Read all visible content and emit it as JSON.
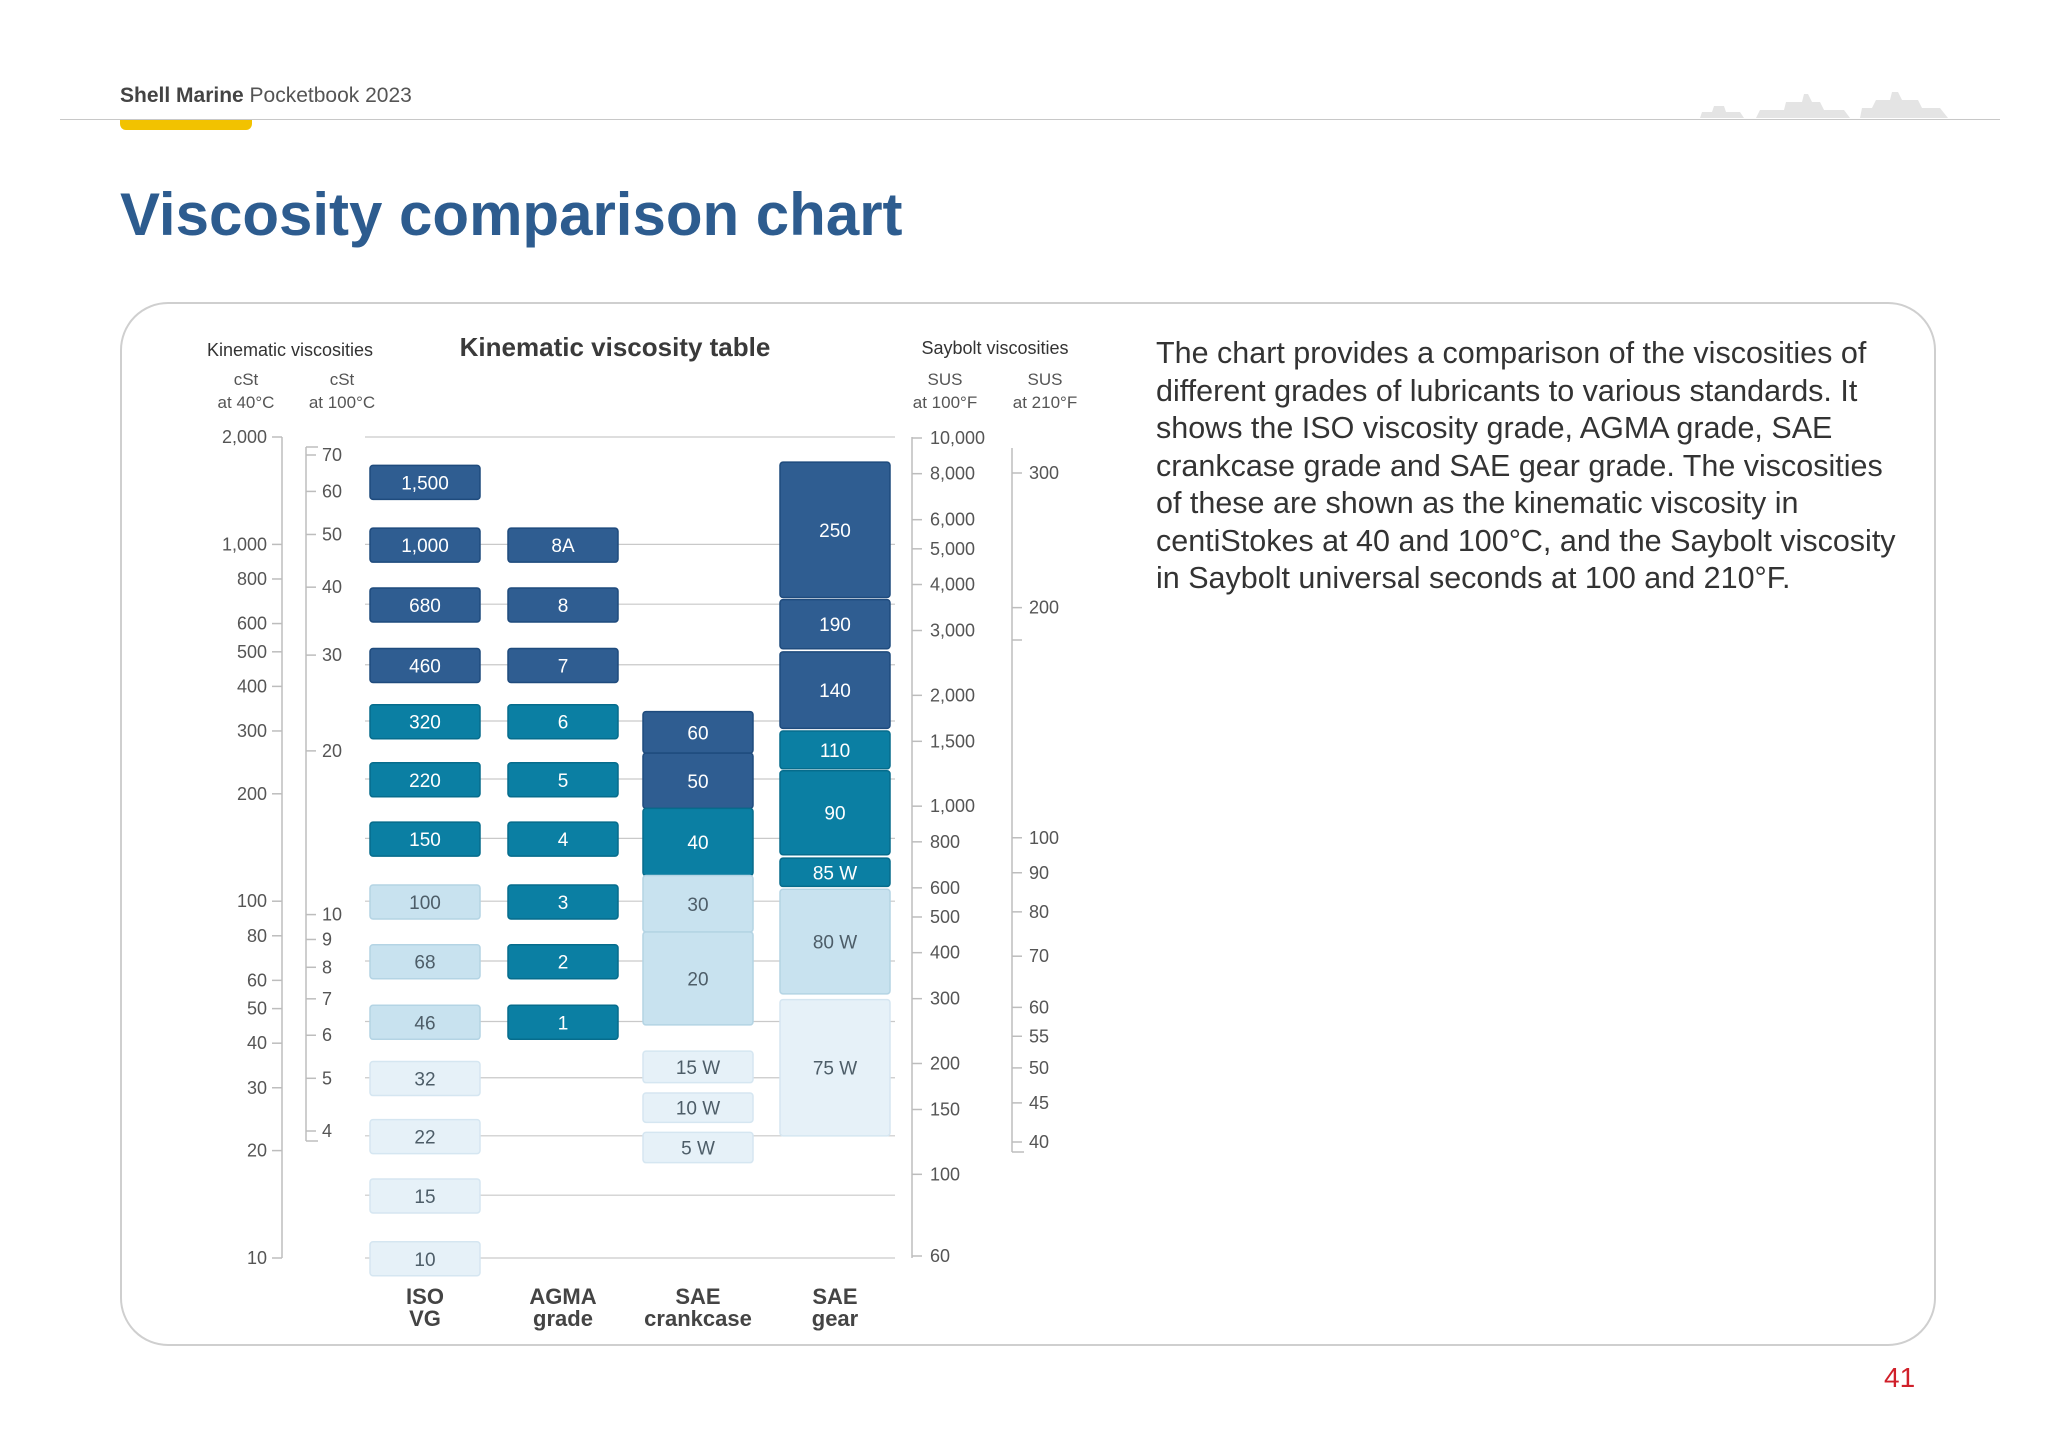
{
  "header": {
    "brand": "Shell Marine",
    "book": "Pocketbook 2023"
  },
  "page_title": "Viscosity comparison chart",
  "description": "The chart provides a comparison of the viscosities of different grades of lubricants to various standards. It shows the ISO viscosity grade, AGMA grade, SAE crankcase grade and SAE gear grade. The viscosities of these are shown as the kinematic viscosity in centiStokes at 40 and 100°C, and the Saybolt viscosity in Saybolt universal seconds at 100 and 210°F.",
  "page_number": "41",
  "colors": {
    "title_blue": "#2d5c8f",
    "dark_blue": "#2f5d91",
    "teal": "#0b7fa3",
    "light_blue": "#c8e2ef",
    "pale_blue": "#e6f1f8",
    "accent_yellow": "#f2c200",
    "page_number_red": "#d0202a"
  },
  "chart_data": {
    "type": "table",
    "title": "Kinematic viscosity table",
    "left_group_label": "Kinematic viscosities",
    "right_group_label": "Saybolt viscosities",
    "axes": {
      "cst40": {
        "unit": "cSt",
        "condition": "at 40°C",
        "ticks": [
          {
            "v": 10,
            "label": "10"
          },
          {
            "v": 20,
            "label": "20"
          },
          {
            "v": 30,
            "label": "30"
          },
          {
            "v": 40,
            "label": "40"
          },
          {
            "v": 50,
            "label": "50"
          },
          {
            "v": 60,
            "label": "60"
          },
          {
            "v": 80,
            "label": "80"
          },
          {
            "v": 100,
            "label": "100"
          },
          {
            "v": 200,
            "label": "200"
          },
          {
            "v": 300,
            "label": "300"
          },
          {
            "v": 400,
            "label": "400"
          },
          {
            "v": 500,
            "label": "500"
          },
          {
            "v": 600,
            "label": "600"
          },
          {
            "v": 800,
            "label": "800"
          },
          {
            "v": 1000,
            "label": "1,000"
          },
          {
            "v": 2000,
            "label": "2,000"
          }
        ]
      },
      "cst100": {
        "unit": "cSt",
        "condition": "at 100°C",
        "ticks": [
          {
            "v": 4,
            "label": "4"
          },
          {
            "v": 5,
            "label": "5"
          },
          {
            "v": 6,
            "label": "6"
          },
          {
            "v": 7,
            "label": "7"
          },
          {
            "v": 8,
            "label": "8"
          },
          {
            "v": 9,
            "label": "9"
          },
          {
            "v": 10,
            "label": "10"
          },
          {
            "v": 20,
            "label": "20"
          },
          {
            "v": 30,
            "label": "30"
          },
          {
            "v": 40,
            "label": "40"
          },
          {
            "v": 50,
            "label": "50"
          },
          {
            "v": 60,
            "label": "60"
          },
          {
            "v": 70,
            "label": "70"
          }
        ]
      },
      "sus100": {
        "unit": "SUS",
        "condition": "at 100°F",
        "ticks": [
          {
            "v": 60,
            "label": "60"
          },
          {
            "v": 100,
            "label": "100"
          },
          {
            "v": 150,
            "label": "150"
          },
          {
            "v": 200,
            "label": "200"
          },
          {
            "v": 300,
            "label": "300"
          },
          {
            "v": 400,
            "label": "400"
          },
          {
            "v": 500,
            "label": "500"
          },
          {
            "v": 600,
            "label": "600"
          },
          {
            "v": 800,
            "label": "800"
          },
          {
            "v": 1000,
            "label": "1,000"
          },
          {
            "v": 1500,
            "label": "1,500"
          },
          {
            "v": 2000,
            "label": "2,000"
          },
          {
            "v": 3000,
            "label": "3,000"
          },
          {
            "v": 4000,
            "label": "4,000"
          },
          {
            "v": 5000,
            "label": "5,000"
          },
          {
            "v": 6000,
            "label": "6,000"
          },
          {
            "v": 8000,
            "label": "8,000"
          },
          {
            "v": 10000,
            "label": "10,000"
          }
        ]
      },
      "sus210": {
        "unit": "SUS",
        "condition": "at 210°F",
        "ticks": [
          {
            "v": 40,
            "label": "40"
          },
          {
            "v": 45,
            "label": "45"
          },
          {
            "v": 50,
            "label": "50"
          },
          {
            "v": 55,
            "label": "55"
          },
          {
            "v": 60,
            "label": "60"
          },
          {
            "v": 70,
            "label": "70"
          },
          {
            "v": 80,
            "label": "80"
          },
          {
            "v": 90,
            "label": "90"
          },
          {
            "v": 100,
            "label": "100"
          },
          {
            "v": 200,
            "label": "200"
          },
          {
            "v": 300,
            "label": "300"
          }
        ]
      }
    },
    "columns": [
      {
        "name": "ISO VG",
        "cells": [
          {
            "label": "1,500",
            "low": 1350,
            "high": 1650,
            "shade": "dark"
          },
          {
            "label": "1,000",
            "low": 900,
            "high": 1100,
            "shade": "dark"
          },
          {
            "label": "680",
            "low": 612,
            "high": 748,
            "shade": "dark"
          },
          {
            "label": "460",
            "low": 414,
            "high": 506,
            "shade": "dark"
          },
          {
            "label": "320",
            "low": 288,
            "high": 352,
            "shade": "teal"
          },
          {
            "label": "220",
            "low": 198,
            "high": 242,
            "shade": "teal"
          },
          {
            "label": "150",
            "low": 135,
            "high": 165,
            "shade": "teal"
          },
          {
            "label": "100",
            "low": 90,
            "high": 110,
            "shade": "light"
          },
          {
            "label": "68",
            "low": 61.2,
            "high": 74.8,
            "shade": "light"
          },
          {
            "label": "46",
            "low": 41.4,
            "high": 50.6,
            "shade": "light"
          },
          {
            "label": "32",
            "low": 28.8,
            "high": 35.2,
            "shade": "pale"
          },
          {
            "label": "22",
            "low": 19.8,
            "high": 24.2,
            "shade": "pale"
          },
          {
            "label": "15",
            "low": 13.5,
            "high": 16.5,
            "shade": "pale"
          },
          {
            "label": "10",
            "low": 9,
            "high": 11,
            "shade": "pale"
          }
        ]
      },
      {
        "name": "AGMA grade",
        "cells": [
          {
            "label": "8A",
            "low": 900,
            "high": 1100,
            "shade": "dark"
          },
          {
            "label": "8",
            "low": 612,
            "high": 748,
            "shade": "dark"
          },
          {
            "label": "7",
            "low": 414,
            "high": 506,
            "shade": "dark"
          },
          {
            "label": "6",
            "low": 288,
            "high": 352,
            "shade": "teal"
          },
          {
            "label": "5",
            "low": 198,
            "high": 242,
            "shade": "teal"
          },
          {
            "label": "4",
            "low": 135,
            "high": 165,
            "shade": "teal"
          },
          {
            "label": "3",
            "low": 90,
            "high": 110,
            "shade": "teal"
          },
          {
            "label": "2",
            "low": 61.2,
            "high": 74.8,
            "shade": "teal"
          },
          {
            "label": "1",
            "low": 41.4,
            "high": 50.6,
            "shade": "teal"
          }
        ]
      },
      {
        "name": "SAE crankcase",
        "cells": [
          {
            "label": "60",
            "low": 260,
            "high": 340,
            "shade": "dark"
          },
          {
            "label": "50",
            "low": 182,
            "high": 260,
            "shade": "dark"
          },
          {
            "label": "40",
            "low": 118,
            "high": 182,
            "shade": "teal"
          },
          {
            "label": "30",
            "low": 82,
            "high": 118,
            "shade": "light"
          },
          {
            "label": "20",
            "low": 45,
            "high": 82,
            "shade": "light"
          },
          {
            "label": "15 W",
            "low": 31,
            "high": 38,
            "shade": "pale"
          },
          {
            "label": "10 W",
            "low": 24,
            "high": 29,
            "shade": "pale"
          },
          {
            "label": "5 W",
            "low": 18.5,
            "high": 22.5,
            "shade": "pale"
          }
        ]
      },
      {
        "name": "SAE gear",
        "cells": [
          {
            "label": "250",
            "low": 710,
            "high": 1700,
            "shade": "dark"
          },
          {
            "label": "190",
            "low": 510,
            "high": 700,
            "shade": "dark"
          },
          {
            "label": "140",
            "low": 305,
            "high": 500,
            "shade": "dark"
          },
          {
            "label": "110",
            "low": 235,
            "high": 300,
            "shade": "teal"
          },
          {
            "label": "90",
            "low": 135,
            "high": 232,
            "shade": "teal"
          },
          {
            "label": "85 W",
            "low": 110,
            "high": 132,
            "shade": "teal"
          },
          {
            "label": "80 W",
            "low": 55,
            "high": 108,
            "shade": "light"
          },
          {
            "label": "75 W",
            "low": 22,
            "high": 53,
            "shade": "pale"
          }
        ]
      }
    ]
  }
}
